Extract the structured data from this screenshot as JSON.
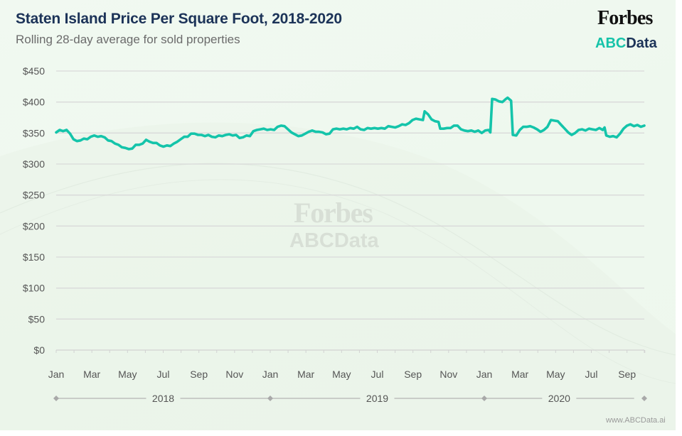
{
  "header": {
    "title": "Staten Island Price Per Square Foot, 2018-2020",
    "subtitle": "Rolling 28-day average for sold properties"
  },
  "branding": {
    "forbes": "Forbes",
    "abc": "ABC",
    "data": "Data",
    "watermark_forbes": "Forbes",
    "watermark_abc": "ABCData",
    "footer_url": "www.ABCData.ai",
    "colors": {
      "abc_teal": "#16c3a9",
      "navy": "#1c3358",
      "line": "#14c4aa"
    }
  },
  "chart_data": {
    "type": "line",
    "title": "Staten Island Price Per Square Foot, 2018-2020",
    "subtitle": "Rolling 28-day average for sold properties",
    "xlabel": "",
    "ylabel": "",
    "ylim": [
      0,
      450
    ],
    "grid": true,
    "legend": "none",
    "y_ticks": [
      0,
      50,
      100,
      150,
      200,
      250,
      300,
      350,
      400,
      450
    ],
    "y_tick_labels": [
      "$0",
      "$50",
      "$100",
      "$150",
      "$200",
      "$250",
      "$300",
      "$350",
      "$400",
      "$450"
    ],
    "x_unit": "months since Jan 2018",
    "xlim": [
      0,
      32.4
    ],
    "x_tick_labels": [
      {
        "m": 0,
        "label": "Jan"
      },
      {
        "m": 2,
        "label": "Mar"
      },
      {
        "m": 4,
        "label": "May"
      },
      {
        "m": 6,
        "label": "Jul"
      },
      {
        "m": 8,
        "label": "Sep"
      },
      {
        "m": 10,
        "label": "Nov"
      },
      {
        "m": 12,
        "label": "Jan"
      },
      {
        "m": 14,
        "label": "Mar"
      },
      {
        "m": 16,
        "label": "May"
      },
      {
        "m": 18,
        "label": "Jul"
      },
      {
        "m": 20,
        "label": "Sep"
      },
      {
        "m": 22,
        "label": "Nov"
      },
      {
        "m": 24,
        "label": "Jan"
      },
      {
        "m": 26,
        "label": "Mar"
      },
      {
        "m": 28,
        "label": "May"
      },
      {
        "m": 30,
        "label": "Jul"
      },
      {
        "m": 32,
        "label": "Sep"
      }
    ],
    "years": [
      {
        "label": "2018",
        "start": 0,
        "end": 12
      },
      {
        "label": "2019",
        "start": 12,
        "end": 24
      },
      {
        "label": "2020",
        "start": 24,
        "end": 32.4
      }
    ],
    "series": [
      {
        "name": "Price per sq ft",
        "points": [
          [
            0.0,
            351
          ],
          [
            0.2,
            355
          ],
          [
            0.4,
            353
          ],
          [
            0.6,
            355
          ],
          [
            0.8,
            349
          ],
          [
            1.0,
            340
          ],
          [
            1.2,
            337
          ],
          [
            1.4,
            338
          ],
          [
            1.6,
            341
          ],
          [
            1.8,
            340
          ],
          [
            2.0,
            344
          ],
          [
            2.2,
            346
          ],
          [
            2.4,
            344
          ],
          [
            2.6,
            345
          ],
          [
            2.8,
            343
          ],
          [
            3.0,
            338
          ],
          [
            3.2,
            337
          ],
          [
            3.4,
            333
          ],
          [
            3.6,
            331
          ],
          [
            3.8,
            327
          ],
          [
            4.0,
            326
          ],
          [
            4.2,
            324
          ],
          [
            4.4,
            325
          ],
          [
            4.6,
            331
          ],
          [
            4.8,
            331
          ],
          [
            5.0,
            333
          ],
          [
            5.2,
            339
          ],
          [
            5.4,
            336
          ],
          [
            5.6,
            334
          ],
          [
            5.8,
            334
          ],
          [
            6.0,
            330
          ],
          [
            6.2,
            328
          ],
          [
            6.4,
            330
          ],
          [
            6.6,
            329
          ],
          [
            6.8,
            333
          ],
          [
            7.0,
            336
          ],
          [
            7.2,
            340
          ],
          [
            7.4,
            344
          ],
          [
            7.6,
            344
          ],
          [
            7.8,
            349
          ],
          [
            8.0,
            349
          ],
          [
            8.2,
            347
          ],
          [
            8.4,
            347
          ],
          [
            8.6,
            345
          ],
          [
            8.8,
            347
          ],
          [
            9.0,
            344
          ],
          [
            9.2,
            343
          ],
          [
            9.4,
            346
          ],
          [
            9.6,
            345
          ],
          [
            9.8,
            347
          ],
          [
            10.0,
            348
          ],
          [
            10.2,
            346
          ],
          [
            10.4,
            347
          ],
          [
            10.6,
            342
          ],
          [
            10.8,
            343
          ],
          [
            11.0,
            346
          ],
          [
            11.2,
            345
          ],
          [
            11.4,
            353
          ],
          [
            11.6,
            355
          ],
          [
            11.8,
            356
          ],
          [
            12.0,
            357
          ],
          [
            12.2,
            355
          ],
          [
            12.4,
            356
          ],
          [
            12.6,
            355
          ],
          [
            12.8,
            360
          ],
          [
            13.0,
            362
          ],
          [
            13.2,
            361
          ],
          [
            13.4,
            356
          ],
          [
            13.6,
            351
          ],
          [
            13.8,
            348
          ],
          [
            14.0,
            345
          ],
          [
            14.2,
            346
          ],
          [
            14.4,
            349
          ],
          [
            14.6,
            352
          ],
          [
            14.8,
            354
          ],
          [
            15.0,
            352
          ],
          [
            15.2,
            352
          ],
          [
            15.4,
            351
          ],
          [
            15.6,
            348
          ],
          [
            15.8,
            349
          ],
          [
            16.0,
            356
          ],
          [
            16.2,
            357
          ],
          [
            16.4,
            356
          ],
          [
            16.6,
            357
          ],
          [
            16.8,
            356
          ],
          [
            17.0,
            358
          ],
          [
            17.2,
            357
          ],
          [
            17.4,
            360
          ],
          [
            17.6,
            356
          ],
          [
            17.8,
            355
          ],
          [
            18.0,
            358
          ],
          [
            18.2,
            357
          ],
          [
            18.4,
            358
          ],
          [
            18.6,
            357
          ],
          [
            18.8,
            358
          ],
          [
            19.0,
            357
          ],
          [
            19.2,
            361
          ],
          [
            19.4,
            360
          ],
          [
            19.6,
            359
          ],
          [
            19.8,
            361
          ],
          [
            20.0,
            364
          ],
          [
            20.2,
            363
          ],
          [
            20.4,
            366
          ],
          [
            20.6,
            371
          ],
          [
            20.8,
            373
          ],
          [
            21.0,
            372
          ],
          [
            21.2,
            371
          ],
          [
            21.3,
            385
          ],
          [
            21.5,
            380
          ],
          [
            21.7,
            372
          ],
          [
            21.9,
            369
          ],
          [
            22.1,
            368
          ],
          [
            22.2,
            357
          ],
          [
            22.4,
            357
          ],
          [
            22.6,
            358
          ],
          [
            22.8,
            358
          ],
          [
            23.0,
            362
          ],
          [
            23.2,
            362
          ],
          [
            23.4,
            356
          ],
          [
            23.6,
            354
          ],
          [
            23.8,
            353
          ],
          [
            24.0,
            354
          ],
          [
            24.2,
            352
          ],
          [
            24.4,
            354
          ],
          [
            24.6,
            350
          ],
          [
            24.8,
            354
          ],
          [
            25.0,
            355
          ],
          [
            25.1,
            351
          ],
          [
            25.2,
            405
          ],
          [
            25.4,
            404
          ],
          [
            25.6,
            401
          ],
          [
            25.8,
            400
          ],
          [
            26.0,
            405
          ],
          [
            26.1,
            407
          ],
          [
            26.3,
            402
          ],
          [
            26.4,
            347
          ],
          [
            26.6,
            346
          ],
          [
            26.8,
            355
          ],
          [
            27.0,
            360
          ],
          [
            27.2,
            360
          ],
          [
            27.4,
            361
          ],
          [
            27.6,
            359
          ],
          [
            27.8,
            356
          ],
          [
            28.0,
            352
          ],
          [
            28.2,
            355
          ],
          [
            28.4,
            360
          ],
          [
            28.6,
            371
          ],
          [
            28.8,
            370
          ],
          [
            29.0,
            369
          ],
          [
            29.2,
            363
          ],
          [
            29.4,
            357
          ],
          [
            29.6,
            351
          ],
          [
            29.8,
            347
          ],
          [
            30.0,
            350
          ],
          [
            30.2,
            355
          ],
          [
            30.4,
            356
          ],
          [
            30.6,
            354
          ],
          [
            30.8,
            357
          ],
          [
            31.0,
            356
          ],
          [
            31.2,
            355
          ],
          [
            31.4,
            358
          ],
          [
            31.6,
            355
          ],
          [
            31.7,
            359
          ],
          [
            31.8,
            346
          ],
          [
            32.0,
            344
          ],
          [
            32.2,
            345
          ],
          [
            32.4,
            343
          ],
          [
            32.6,
            349
          ],
          [
            32.8,
            357
          ],
          [
            33.0,
            362
          ],
          [
            33.2,
            364
          ],
          [
            33.4,
            361
          ],
          [
            33.6,
            363
          ],
          [
            33.8,
            360
          ],
          [
            34.0,
            362
          ]
        ]
      }
    ]
  }
}
